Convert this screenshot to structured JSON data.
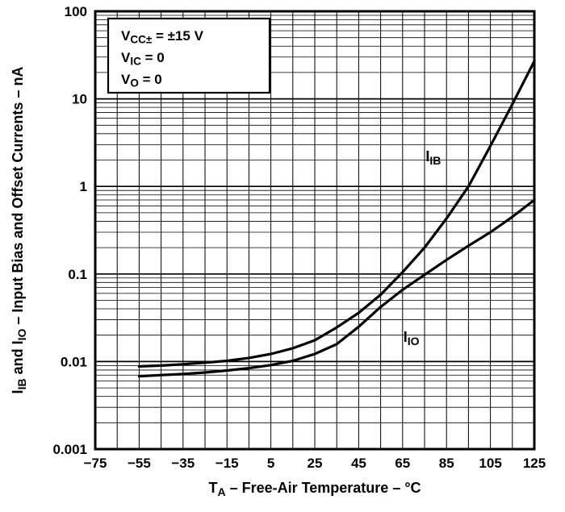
{
  "chart_data": {
    "type": "line",
    "title": "",
    "background": "#ffffff",
    "line_color": "#000000",
    "grid": true,
    "xlabel": "TA – Free-Air Temperature – °C",
    "ylabel": "IIB and IIO – Input Bias and Offset Currents – nA",
    "xlabel_rich": [
      {
        "t": "T"
      },
      {
        "t": "A",
        "sub": true
      },
      {
        "t": " – Free-Air Temperature – °C"
      }
    ],
    "ylabel_rich": [
      {
        "t": "I"
      },
      {
        "t": "IB",
        "sub": true
      },
      {
        "t": " and "
      },
      {
        "t": "I"
      },
      {
        "t": "IO",
        "sub": true
      },
      {
        "t": " – Input Bias and Offset Currents – nA"
      }
    ],
    "x_axis": {
      "min": -75,
      "max": 125,
      "minor_step": 10,
      "major_step": 20,
      "ticks": [
        -75,
        -55,
        -35,
        -15,
        5,
        25,
        45,
        65,
        85,
        105,
        125
      ],
      "tick_labels": [
        "−75",
        "−55",
        "−35",
        "−15",
        "5",
        "25",
        "45",
        "65",
        "85",
        "105",
        "125"
      ]
    },
    "y_axis": {
      "scale": "log",
      "min": 0.001,
      "max": 100,
      "ticks": [
        0.001,
        0.01,
        0.1,
        1,
        10,
        100
      ],
      "tick_labels": [
        "0.001",
        "0.01",
        "0.1",
        "1",
        "10",
        "100"
      ]
    },
    "conditions": {
      "lines": [
        "VCC± = ±15 V",
        "VIC = 0",
        "VO = 0"
      ],
      "lines_rich": [
        [
          {
            "t": "V"
          },
          {
            "t": "CC±",
            "sub": true
          },
          {
            "t": " = ±15 V"
          }
        ],
        [
          {
            "t": "V"
          },
          {
            "t": "IC",
            "sub": true
          },
          {
            "t": " = 0"
          }
        ],
        [
          {
            "t": "V"
          },
          {
            "t": "O",
            "sub": true
          },
          {
            "t": " = 0"
          }
        ]
      ]
    },
    "series": [
      {
        "name": "IIB",
        "label": "IIB",
        "label_rich": [
          {
            "t": "I"
          },
          {
            "t": "IB",
            "sub": true
          }
        ],
        "label_pos": {
          "t": 79,
          "v": 2.2
        },
        "points": [
          [
            -55,
            0.0088
          ],
          [
            -45,
            0.009
          ],
          [
            -35,
            0.0093
          ],
          [
            -25,
            0.0097
          ],
          [
            -15,
            0.0102
          ],
          [
            -5,
            0.011
          ],
          [
            5,
            0.0122
          ],
          [
            15,
            0.0142
          ],
          [
            25,
            0.0175
          ],
          [
            35,
            0.0245
          ],
          [
            45,
            0.036
          ],
          [
            55,
            0.058
          ],
          [
            65,
            0.105
          ],
          [
            75,
            0.2
          ],
          [
            85,
            0.43
          ],
          [
            95,
            1.0
          ],
          [
            105,
            2.9
          ],
          [
            115,
            8.7
          ],
          [
            125,
            27
          ]
        ]
      },
      {
        "name": "IIO",
        "label": "IIO",
        "label_rich": [
          {
            "t": "I"
          },
          {
            "t": "IO",
            "sub": true
          }
        ],
        "label_pos": {
          "t": 69,
          "v": 0.019
        },
        "points": [
          [
            -55,
            0.0068
          ],
          [
            -45,
            0.007
          ],
          [
            -35,
            0.0072
          ],
          [
            -25,
            0.0075
          ],
          [
            -15,
            0.0079
          ],
          [
            -5,
            0.0084
          ],
          [
            5,
            0.0091
          ],
          [
            15,
            0.0102
          ],
          [
            25,
            0.0122
          ],
          [
            35,
            0.0158
          ],
          [
            45,
            0.025
          ],
          [
            55,
            0.042
          ],
          [
            65,
            0.066
          ],
          [
            75,
            0.098
          ],
          [
            85,
            0.145
          ],
          [
            95,
            0.21
          ],
          [
            105,
            0.3
          ],
          [
            115,
            0.45
          ],
          [
            125,
            0.7
          ]
        ]
      }
    ]
  }
}
